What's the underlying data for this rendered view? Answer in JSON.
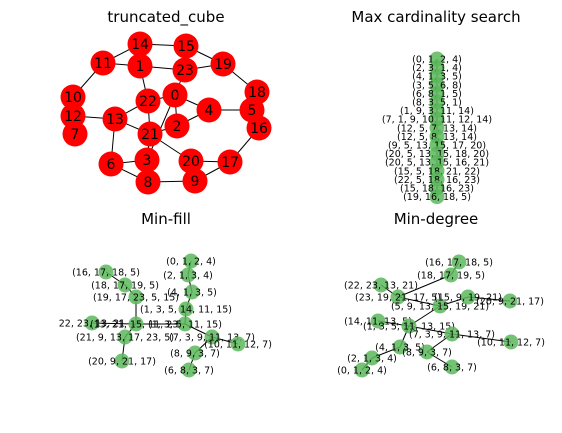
{
  "panels": [
    {
      "title": "truncated_cube",
      "nodes": [
        {
          "label": "14"
        },
        {
          "label": "15"
        },
        {
          "label": "11"
        },
        {
          "label": "1"
        },
        {
          "label": "23"
        },
        {
          "label": "19"
        },
        {
          "label": "10"
        },
        {
          "label": "18"
        },
        {
          "label": "22"
        },
        {
          "label": "0"
        },
        {
          "label": "12"
        },
        {
          "label": "4"
        },
        {
          "label": "5"
        },
        {
          "label": "13"
        },
        {
          "label": "7"
        },
        {
          "label": "2"
        },
        {
          "label": "16"
        },
        {
          "label": "21"
        },
        {
          "label": "6"
        },
        {
          "label": "3"
        },
        {
          "label": "20"
        },
        {
          "label": "17"
        },
        {
          "label": "8"
        },
        {
          "label": "9"
        }
      ],
      "edges": [
        [
          "14",
          "15"
        ],
        [
          "14",
          "11"
        ],
        [
          "14",
          "1"
        ],
        [
          "15",
          "23"
        ],
        [
          "15",
          "19"
        ],
        [
          "11",
          "1"
        ],
        [
          "11",
          "10"
        ],
        [
          "1",
          "23"
        ],
        [
          "1",
          "22"
        ],
        [
          "23",
          "19"
        ],
        [
          "23",
          "0"
        ],
        [
          "19",
          "18"
        ],
        [
          "10",
          "12"
        ],
        [
          "10",
          "7"
        ],
        [
          "18",
          "5"
        ],
        [
          "18",
          "16"
        ],
        [
          "22",
          "0"
        ],
        [
          "22",
          "13"
        ],
        [
          "22",
          "21"
        ],
        [
          "0",
          "4"
        ],
        [
          "0",
          "2"
        ],
        [
          "0",
          "3"
        ],
        [
          "12",
          "7"
        ],
        [
          "12",
          "13"
        ],
        [
          "4",
          "5"
        ],
        [
          "4",
          "2"
        ],
        [
          "5",
          "16"
        ],
        [
          "13",
          "21"
        ],
        [
          "13",
          "6"
        ],
        [
          "2",
          "21"
        ],
        [
          "16",
          "17"
        ],
        [
          "21",
          "3"
        ],
        [
          "6",
          "3"
        ],
        [
          "6",
          "8"
        ],
        [
          "3",
          "8"
        ],
        [
          "20",
          "17"
        ],
        [
          "20",
          "9"
        ],
        [
          "20",
          "21"
        ],
        [
          "17",
          "9"
        ],
        [
          "8",
          "9"
        ]
      ]
    },
    {
      "title": "Max cardinality search",
      "nodes": [
        {
          "label": "(0, 1, 2, 4)"
        },
        {
          "label": "(2, 3, 1, 4)"
        },
        {
          "label": "(4, 1, 3, 5)"
        },
        {
          "label": "(3, 5, 6, 8)"
        },
        {
          "label": "(6, 8, 1, 5)"
        },
        {
          "label": "(8, 3, 5, 1)"
        },
        {
          "label": "(1, 9, 3, 11, 14)"
        },
        {
          "label": "(7, 1, 9, 10, 11, 12, 14)"
        },
        {
          "label": "(12, 5, 7, 13, 14)"
        },
        {
          "label": "(12, 5, 8, 13, 14)"
        },
        {
          "label": "(9, 5, 13, 15, 17, 20)"
        },
        {
          "label": "(20, 5, 13, 15, 18, 20)"
        },
        {
          "label": "(20, 5, 13, 15, 16, 21)"
        },
        {
          "label": "(15, 5, 18, 21, 22)"
        },
        {
          "label": "(22, 5, 18, 16, 23)"
        },
        {
          "label": "(15, 18, 16, 23)"
        },
        {
          "label": "(19, 16, 18, 5)"
        }
      ]
    },
    {
      "title": "Min-fill",
      "nodes": [
        {
          "label": "(0, 1, 2, 4)"
        },
        {
          "label": "(2, 1, 3, 4)"
        },
        {
          "label": "(16, 17, 18, 5)"
        },
        {
          "label": "(18, 17, 19, 5)"
        },
        {
          "label": "(4, 1, 3, 5)"
        },
        {
          "label": "(19, 17, 23, 5, 15)"
        },
        {
          "label": "(1, 3, 5, 14, 11, 15)"
        },
        {
          "label": "22, 23, 13, 21"
        },
        {
          "label": "(13, 21, 15, 11, 23)"
        },
        {
          "label": "(1, 3, 5, 11, 15)"
        },
        {
          "label": "(7, 3, 9, 11, 13, 7)"
        },
        {
          "label": "(10, 11, 12, 7)"
        },
        {
          "label": "(21, 9, 13, 17, 23, 5)"
        },
        {
          "label": "(8, 9, 3, 7)"
        },
        {
          "label": "(20, 9, 21, 17)"
        },
        {
          "label": "(6, 8, 3, 7)"
        }
      ]
    },
    {
      "title": "Min-degree",
      "nodes": [
        {
          "label": "(16, 17, 18, 5)"
        },
        {
          "label": "(18, 17, 19, 5)"
        },
        {
          "label": "(22, 23, 13, 21)"
        },
        {
          "label": "(23, 19, 21, 17, 5)"
        },
        {
          "label": "(5, 9, 13, 15, 19, 21)"
        },
        {
          "label": "(15, 9, 19, 21)"
        },
        {
          "label": "(20, 9, 21, 17)"
        },
        {
          "label": "(14, 11, 13, 5)"
        },
        {
          "label": "(1, 3, 5, 11, 13, 15)"
        },
        {
          "label": "(7, 3, 9, 11, 13, 7)"
        },
        {
          "label": "(10, 11, 12, 7)"
        },
        {
          "label": "(4, 1, 3, 5)"
        },
        {
          "label": "(8, 9, 3, 7)"
        },
        {
          "label": "(2, 1, 3, 4)"
        },
        {
          "label": "(6, 8, 3, 7)"
        },
        {
          "label": "(0, 1, 2, 4)"
        }
      ]
    }
  ],
  "colors": {
    "graph_node": "#ff0000",
    "tree_node": "#5cb85c",
    "edge": "#000000",
    "background": "#ffffff"
  }
}
